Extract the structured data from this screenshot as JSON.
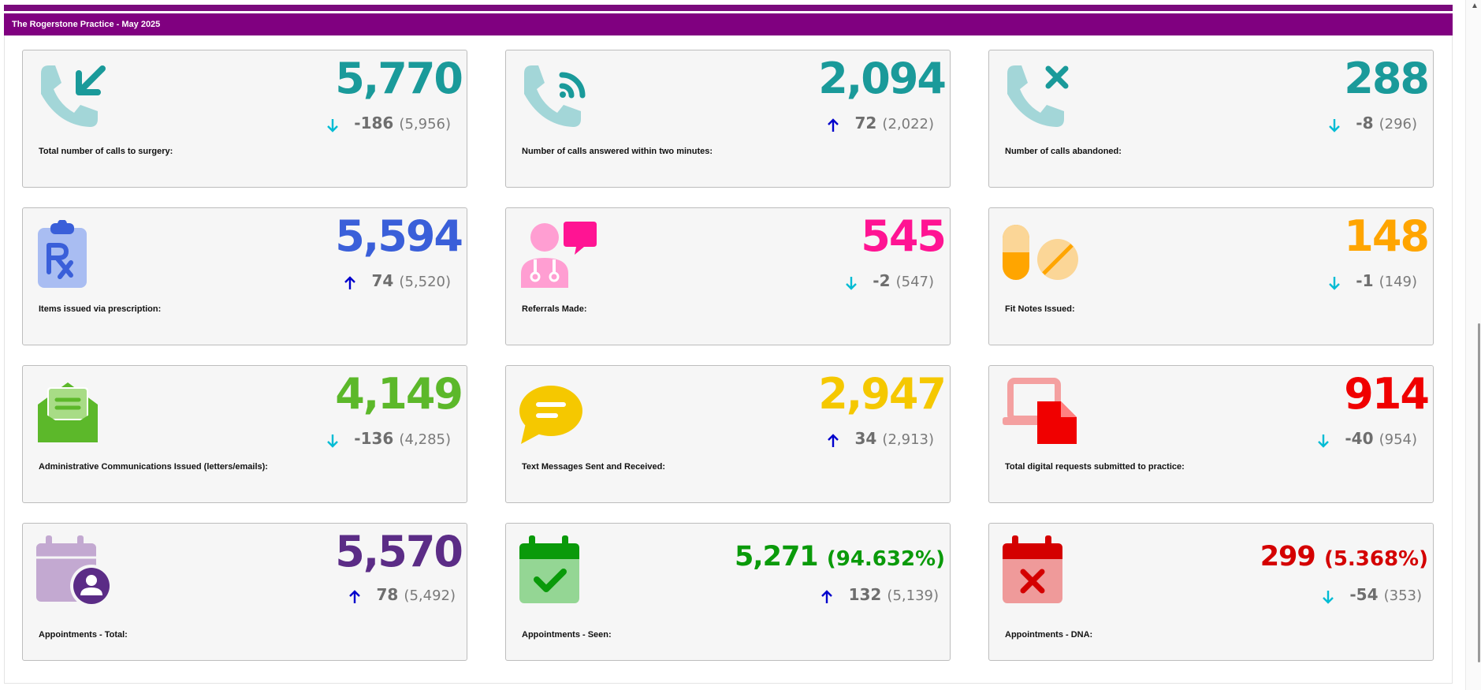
{
  "header": {
    "title": "The Rogerstone Practice - May 2025"
  },
  "colors": {
    "header_bg": "#800080",
    "arrow_up": "#0000cc",
    "arrow_down": "#00bcd4"
  },
  "cards": [
    {
      "label": "Total number of calls to surgery:",
      "value": "5,770",
      "direction": "down",
      "delta": "-186",
      "previous": "(5,956)",
      "color": "#1a9a9a",
      "icon": "phone-incoming-icon"
    },
    {
      "label": "Number of calls answered within two minutes:",
      "value": "2,094",
      "direction": "up",
      "delta": "72",
      "previous": "(2,022)",
      "color": "#1a9a9a",
      "icon": "phone-answered-icon"
    },
    {
      "label": "Number of calls abandoned:",
      "value": "288",
      "direction": "down",
      "delta": "-8",
      "previous": "(296)",
      "color": "#1a9a9a",
      "icon": "phone-abandoned-icon"
    },
    {
      "label": "Items issued via prescription:",
      "value": "5,594",
      "direction": "up",
      "delta": "74",
      "previous": "(5,520)",
      "color": "#3a5fd9",
      "icon": "prescription-clipboard-icon"
    },
    {
      "label": "Referrals Made:",
      "value": "545",
      "direction": "down",
      "delta": "-2",
      "previous": "(547)",
      "color": "#ff1493",
      "icon": "doctor-speech-icon"
    },
    {
      "label": "Fit Notes Issued:",
      "value": "148",
      "direction": "down",
      "delta": "-1",
      "previous": "(149)",
      "color": "#ffa500",
      "icon": "pills-icon"
    },
    {
      "label": "Administrative Communications Issued (letters/emails):",
      "value": "4,149",
      "direction": "down",
      "delta": "-136",
      "previous": "(4,285)",
      "color": "#5cb82a",
      "icon": "envelope-open-icon"
    },
    {
      "label": "Text Messages Sent and Received:",
      "value": "2,947",
      "direction": "up",
      "delta": "34",
      "previous": "(2,913)",
      "color": "#f5c800",
      "icon": "message-bubble-icon"
    },
    {
      "label": "Total digital requests submitted to practice:",
      "value": "914",
      "direction": "down",
      "delta": "-40",
      "previous": "(954)",
      "color": "#f00000",
      "icon": "laptop-document-icon"
    },
    {
      "label": "Appointments - Total:",
      "value": "5,570",
      "direction": "up",
      "delta": "78",
      "previous": "(5,492)",
      "color": "#5b2c86",
      "icon": "calendar-user-icon"
    },
    {
      "label": "Appointments - Seen:",
      "value": "5,271",
      "percent": "(94.632%)",
      "direction": "up",
      "delta": "132",
      "previous": "(5,139)",
      "color": "#0a9a0a",
      "icon": "calendar-check-icon"
    },
    {
      "label": "Appointments - DNA:",
      "value": "299",
      "percent": "(5.368%)",
      "direction": "down",
      "delta": "-54",
      "previous": "(353)",
      "color": "#d40000",
      "icon": "calendar-cross-icon"
    }
  ]
}
